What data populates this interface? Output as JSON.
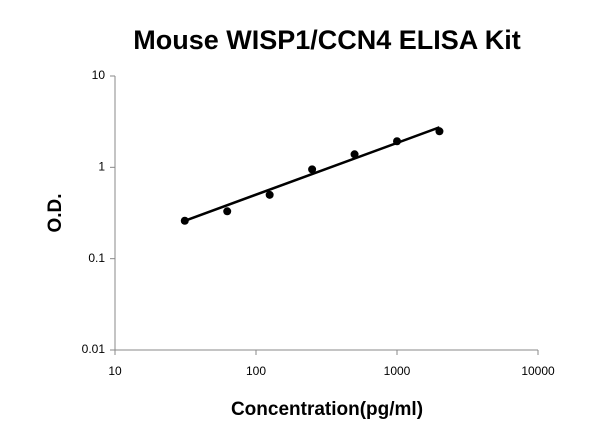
{
  "chart_data": {
    "type": "scatter",
    "title": "Mouse WISP1/CCN4 ELISA Kit",
    "x_label": "Concentration(pg/ml)",
    "y_label": "O.D.",
    "x": [
      31.25,
      62.5,
      125,
      250,
      500,
      1000,
      2000
    ],
    "values": [
      0.26,
      0.33,
      0.5,
      0.95,
      1.39,
      1.93,
      2.48
    ],
    "color": "#000000",
    "trendline": {
      "x": [
        31.25,
        2000
      ],
      "values": [
        0.26,
        2.74
      ]
    },
    "xlim": [
      10,
      10000
    ],
    "xticks": [
      10,
      100,
      1000,
      10000
    ],
    "ylim": [
      0.01,
      10
    ],
    "yticks": [
      0.01,
      0.1,
      1,
      10
    ],
    "xscale": "log",
    "yscale": "log",
    "grid": false
  }
}
